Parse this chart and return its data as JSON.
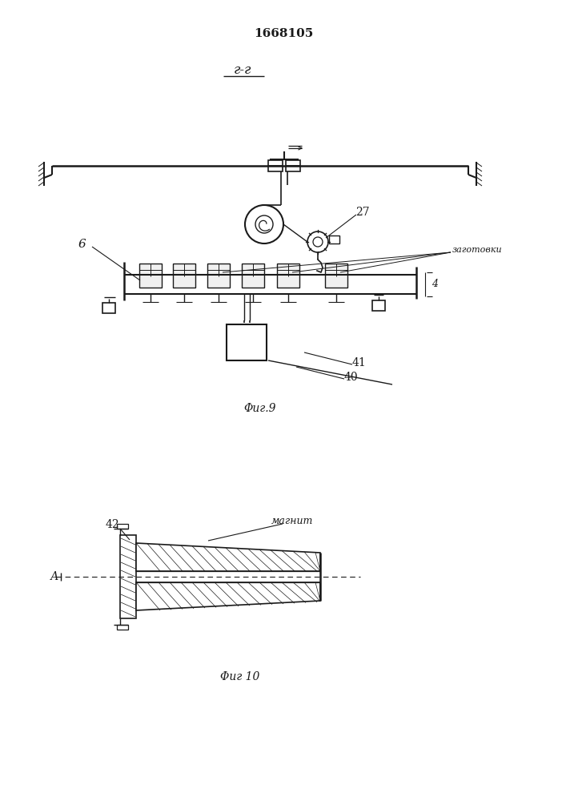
{
  "title": "1668105",
  "section_label": "г-г",
  "fig9_label": "Φиг.9",
  "fig10_label": "Φиг 10",
  "label_27": "27",
  "label_6": "6",
  "label_4": "4",
  "label_40": "40",
  "label_41": "41",
  "label_42": "42",
  "label_zagotovki": "заготовки",
  "label_magnit": "магнит",
  "label_A": "А",
  "bg_color": "#ffffff",
  "line_color": "#1a1a1a"
}
